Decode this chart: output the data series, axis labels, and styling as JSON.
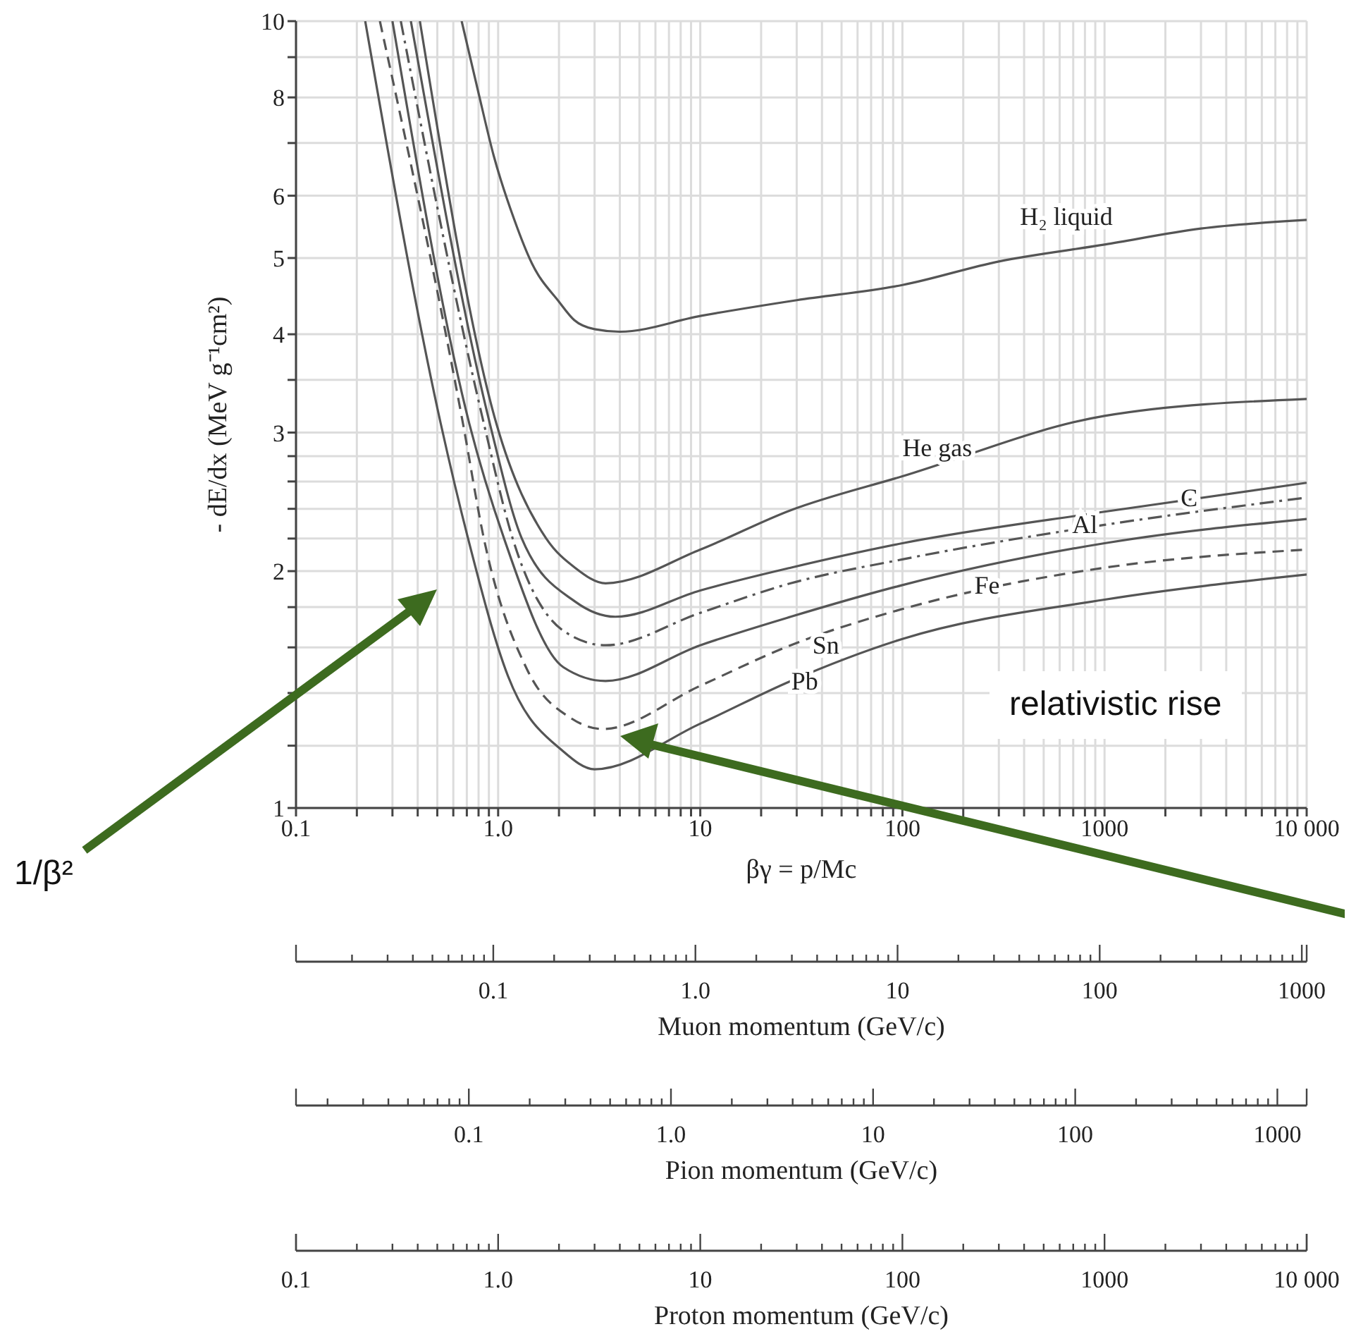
{
  "chart_data": [
    {
      "type": "line",
      "xlabel": "βγ = p/Mc",
      "ylabel": "- dE/dx (MeV g⁻¹cm²)",
      "log": "xy",
      "grid": true,
      "legend": false,
      "marker": "none",
      "xlim": [
        0.1,
        10000
      ],
      "xticks": [
        0.1,
        {
          "value": 0.2,
          "label": null
        },
        {
          "value": 0.3,
          "label": null
        },
        {
          "value": 0.4,
          "label": null
        },
        {
          "value": 0.5,
          "label": null
        },
        {
          "value": 0.6,
          "label": null
        },
        {
          "value": 0.7,
          "label": null
        },
        {
          "value": 0.8,
          "label": null
        },
        {
          "value": 0.9,
          "label": null
        },
        {
          "value": 1,
          "label": "1.0"
        },
        {
          "value": 2,
          "label": null
        },
        {
          "value": 3,
          "label": null
        },
        {
          "value": 4,
          "label": null
        },
        {
          "value": 5,
          "label": null
        },
        {
          "value": 6,
          "label": null
        },
        {
          "value": 7,
          "label": null
        },
        {
          "value": 8,
          "label": null
        },
        {
          "value": 9,
          "label": null
        },
        10,
        {
          "value": 20,
          "label": null
        },
        {
          "value": 30,
          "label": null
        },
        {
          "value": 40,
          "label": null
        },
        {
          "value": 50,
          "label": null
        },
        {
          "value": 60,
          "label": null
        },
        {
          "value": 70,
          "label": null
        },
        {
          "value": 80,
          "label": null
        },
        {
          "value": 90,
          "label": null
        },
        100,
        {
          "value": 200,
          "label": null
        },
        {
          "value": 300,
          "label": null
        },
        {
          "value": 400,
          "label": null
        },
        {
          "value": 500,
          "label": null
        },
        {
          "value": 600,
          "label": null
        },
        {
          "value": 700,
          "label": null
        },
        {
          "value": 800,
          "label": null
        },
        {
          "value": 900,
          "label": null
        },
        1000,
        {
          "value": 2000,
          "label": null
        },
        {
          "value": 3000,
          "label": null
        },
        {
          "value": 4000,
          "label": null
        },
        {
          "value": 5000,
          "label": null
        },
        {
          "value": 6000,
          "label": null
        },
        {
          "value": 7000,
          "label": null
        },
        {
          "value": 8000,
          "label": null
        },
        {
          "value": 9000,
          "label": null
        },
        {
          "value": 10000,
          "label": "10 000"
        }
      ],
      "ylim": [
        1,
        10
      ],
      "yticks": [
        1,
        {
          "value": 1.2,
          "label": null
        },
        {
          "value": 1.4,
          "label": null
        },
        {
          "value": 1.6,
          "label": null
        },
        {
          "value": 1.8,
          "label": null
        },
        2,
        {
          "value": 2.2,
          "label": null
        },
        {
          "value": 2.4,
          "label": null
        },
        {
          "value": 2.6,
          "label": null
        },
        {
          "value": 2.8,
          "label": null
        },
        3,
        {
          "value": 3.5,
          "label": null
        },
        4,
        5,
        6,
        {
          "value": 7,
          "label": null
        },
        8,
        {
          "value": 9,
          "label": null
        },
        10
      ],
      "annotations": [
        "1/β²",
        "relativistic rise"
      ],
      "series": [
        {
          "name": "H₂ liquid",
          "color": "#555555",
          "line_style": "solid",
          "x": [
            0.66,
            0.8,
            0.95,
            1.2,
            1.47,
            2,
            2.38,
            3,
            4,
            10,
            30,
            100,
            300,
            1000,
            3000,
            10000
          ],
          "values": [
            10,
            8.1,
            6.75,
            5.6,
            4.92,
            4.4,
            4.17,
            4.06,
            4.03,
            4.22,
            4.42,
            4.62,
            4.95,
            5.2,
            5.45,
            5.59
          ]
        },
        {
          "name": "He gas",
          "color": "#555555",
          "line_style": "solid",
          "x": [
            0.41,
            0.98,
            1.73,
            2.4,
            3.4,
            10,
            28,
            100,
            1000,
            10000
          ],
          "values": [
            10,
            3.08,
            2.2,
            2.02,
            1.93,
            2.13,
            2.39,
            2.64,
            3.15,
            3.31
          ]
        },
        {
          "name": "C",
          "color": "#555555",
          "line_style": "solid",
          "x": [
            0.37,
            0.91,
            1.31,
            2.4,
            3.8,
            10,
            28,
            100,
            1000,
            10000
          ],
          "values": [
            10,
            3.08,
            2.2,
            1.83,
            1.75,
            1.89,
            2.02,
            2.17,
            2.38,
            2.59
          ]
        },
        {
          "name": "Al",
          "color": "#555555",
          "line_style": "dashdot",
          "x": [
            0.33,
            0.85,
            1.18,
            2.1,
            3.4,
            10,
            28,
            100,
            1000,
            10000
          ],
          "values": [
            10,
            3.08,
            2.2,
            1.68,
            1.61,
            1.77,
            1.93,
            2.07,
            2.29,
            2.48
          ]
        },
        {
          "name": "Fe",
          "color": "#555555",
          "line_style": "solid",
          "x": [
            0.3,
            0.72,
            1.07,
            2.1,
            3.4,
            10,
            28,
            100,
            1000,
            10000
          ],
          "values": [
            10,
            3.08,
            2.2,
            1.51,
            1.45,
            1.61,
            1.75,
            1.92,
            2.17,
            2.33
          ]
        },
        {
          "name": "Sn",
          "color": "#555555",
          "line_style": "dashed",
          "x": [
            0.26,
            0.67,
            0.85,
            1.39,
            2.3,
            3.3,
            10,
            28,
            100,
            1000,
            10000
          ],
          "values": [
            10,
            3.08,
            2.2,
            1.5,
            1.3,
            1.26,
            1.43,
            1.61,
            1.79,
            2.02,
            2.13
          ]
        },
        {
          "name": "Pb",
          "color": "#555555",
          "line_style": "solid",
          "x": [
            0.22,
            0.52,
            0.71,
            1.12,
            2.1,
            3,
            10,
            28,
            100,
            1000,
            10000
          ],
          "values": [
            10,
            3.08,
            2.2,
            1.47,
            1.18,
            1.12,
            1.28,
            1.45,
            1.64,
            1.84,
            1.98
          ]
        }
      ]
    },
    {
      "type": "other",
      "xlabel": "Muon momentum (GeV/c)",
      "annotations": [
        "0.1",
        "1.0",
        "10",
        "100",
        "1000"
      ]
    },
    {
      "type": "other",
      "xlabel": "Pion momentum (GeV/c)",
      "annotations": [
        "0.1",
        "1.0",
        "10",
        "100",
        "1000"
      ]
    },
    {
      "type": "other",
      "xlabel": "Proton momentum (GeV/c)",
      "annotations": [
        "0.1",
        "1.0",
        "10",
        "100",
        "1000",
        "10 000"
      ]
    }
  ]
}
